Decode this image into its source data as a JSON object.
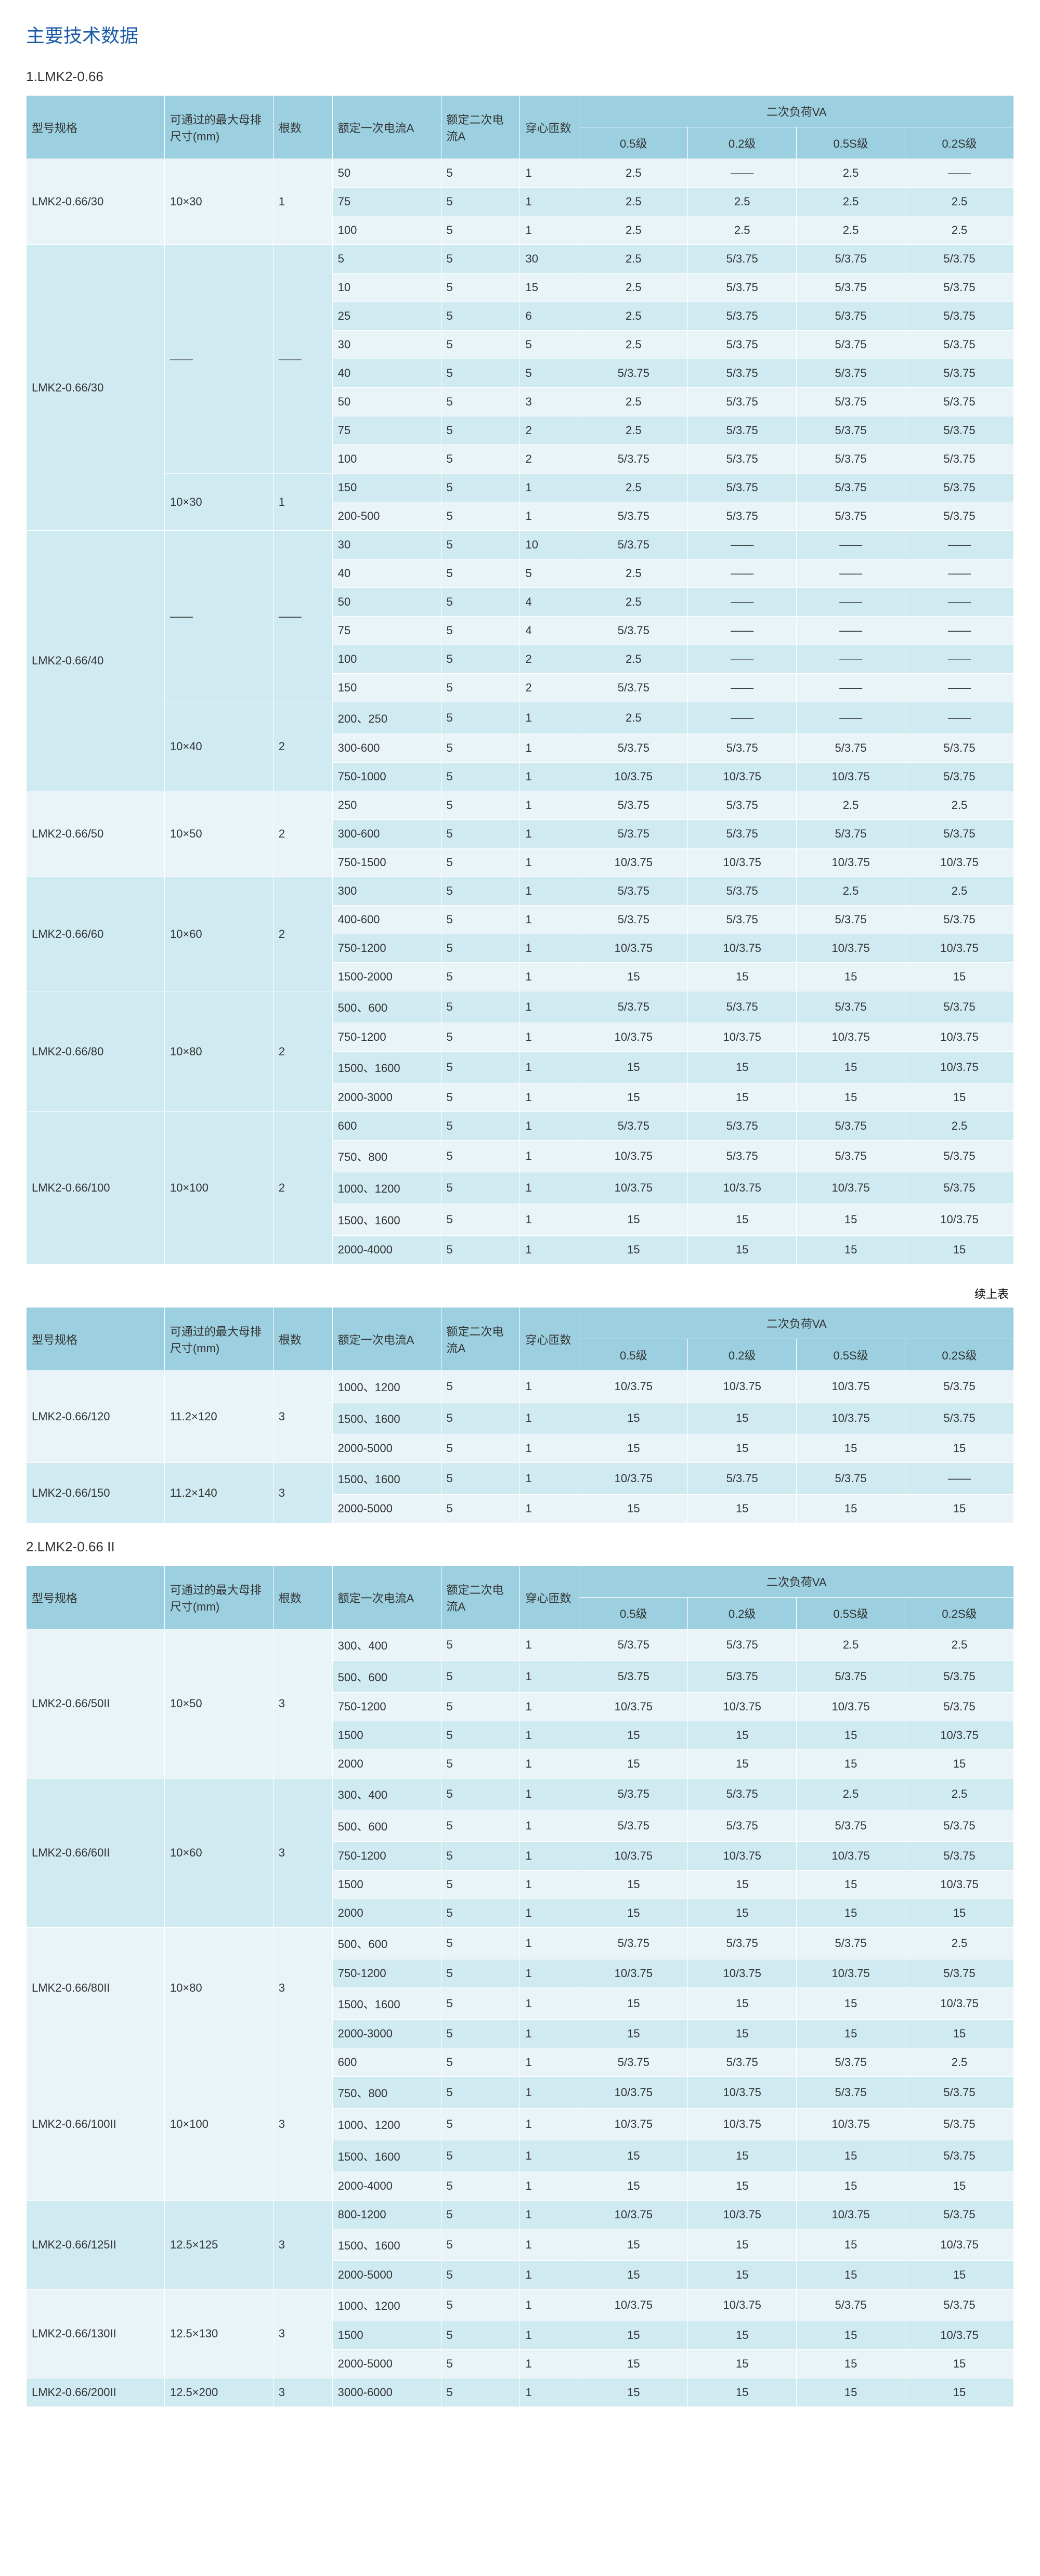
{
  "title": "主要技术数据",
  "section1_label": "1.LMK2-0.66",
  "section2_label": "2.LMK2-0.66 II",
  "continue_label": "续上表",
  "headers": {
    "model": "型号规格",
    "busbar": "可通过的最大母排尺寸(mm)",
    "roots": "根数",
    "primary": "额定一次电流A",
    "secondary": "额定二次电流A",
    "turns": "穿心匝数",
    "load": "二次负荷VA",
    "g05": "0.5级",
    "g02": "0.2级",
    "g05s": "0.5S级",
    "g02s": "0.2S级"
  },
  "groups1": [
    {
      "model": "LMK2-0.66/30",
      "bus": "10×30",
      "roots": "1",
      "rows": [
        [
          "50",
          "5",
          "1",
          "2.5",
          "——",
          "2.5",
          "——"
        ],
        [
          "75",
          "5",
          "1",
          "2.5",
          "2.5",
          "2.5",
          "2.5"
        ],
        [
          "100",
          "5",
          "1",
          "2.5",
          "2.5",
          "2.5",
          "2.5"
        ]
      ]
    },
    {
      "model": "LMK2-0.66/30",
      "bus_multi": true,
      "subs": [
        {
          "bus": "——",
          "roots": "——",
          "rows": [
            [
              "5",
              "5",
              "30",
              "2.5",
              "5/3.75",
              "5/3.75",
              "5/3.75"
            ],
            [
              "10",
              "5",
              "15",
              "2.5",
              "5/3.75",
              "5/3.75",
              "5/3.75"
            ],
            [
              "25",
              "5",
              "6",
              "2.5",
              "5/3.75",
              "5/3.75",
              "5/3.75"
            ],
            [
              "30",
              "5",
              "5",
              "2.5",
              "5/3.75",
              "5/3.75",
              "5/3.75"
            ],
            [
              "40",
              "5",
              "5",
              "5/3.75",
              "5/3.75",
              "5/3.75",
              "5/3.75"
            ],
            [
              "50",
              "5",
              "3",
              "2.5",
              "5/3.75",
              "5/3.75",
              "5/3.75"
            ],
            [
              "75",
              "5",
              "2",
              "2.5",
              "5/3.75",
              "5/3.75",
              "5/3.75"
            ],
            [
              "100",
              "5",
              "2",
              "5/3.75",
              "5/3.75",
              "5/3.75",
              "5/3.75"
            ]
          ]
        },
        {
          "bus": "10×30",
          "roots": "1",
          "rows": [
            [
              "150",
              "5",
              "1",
              "2.5",
              "5/3.75",
              "5/3.75",
              "5/3.75"
            ],
            [
              "200-500",
              "5",
              "1",
              "5/3.75",
              "5/3.75",
              "5/3.75",
              "5/3.75"
            ]
          ]
        }
      ]
    },
    {
      "model": "LMK2-0.66/40",
      "bus_multi": true,
      "subs": [
        {
          "bus": "——",
          "roots": "——",
          "rows": [
            [
              "30",
              "5",
              "10",
              "5/3.75",
              "——",
              "——",
              "——"
            ],
            [
              "40",
              "5",
              "5",
              "2.5",
              "——",
              "——",
              "——"
            ],
            [
              "50",
              "5",
              "4",
              "2.5",
              "——",
              "——",
              "——"
            ],
            [
              "75",
              "5",
              "4",
              "5/3.75",
              "——",
              "——",
              "——"
            ],
            [
              "100",
              "5",
              "2",
              "2.5",
              "——",
              "——",
              "——"
            ],
            [
              "150",
              "5",
              "2",
              "5/3.75",
              "——",
              "——",
              "——"
            ]
          ]
        },
        {
          "bus": "10×40",
          "roots": "2",
          "rows": [
            [
              "200、250",
              "5",
              "1",
              "2.5",
              "——",
              "——",
              "——"
            ],
            [
              "300-600",
              "5",
              "1",
              "5/3.75",
              "5/3.75",
              "5/3.75",
              "5/3.75"
            ],
            [
              "750-1000",
              "5",
              "1",
              "10/3.75",
              "10/3.75",
              "10/3.75",
              "5/3.75"
            ]
          ]
        }
      ]
    },
    {
      "model": "LMK2-0.66/50",
      "bus": "10×50",
      "roots": "2",
      "rows": [
        [
          "250",
          "5",
          "1",
          "5/3.75",
          "5/3.75",
          "2.5",
          "2.5"
        ],
        [
          "300-600",
          "5",
          "1",
          "5/3.75",
          "5/3.75",
          "5/3.75",
          "5/3.75"
        ],
        [
          "750-1500",
          "5",
          "1",
          "10/3.75",
          "10/3.75",
          "10/3.75",
          "10/3.75"
        ]
      ]
    },
    {
      "model": "LMK2-0.66/60",
      "bus": "10×60",
      "roots": "2",
      "rows": [
        [
          "300",
          "5",
          "1",
          "5/3.75",
          "5/3.75",
          "2.5",
          "2.5"
        ],
        [
          "400-600",
          "5",
          "1",
          "5/3.75",
          "5/3.75",
          "5/3.75",
          "5/3.75"
        ],
        [
          "750-1200",
          "5",
          "1",
          "10/3.75",
          "10/3.75",
          "10/3.75",
          "10/3.75"
        ],
        [
          "1500-2000",
          "5",
          "1",
          "15",
          "15",
          "15",
          "15"
        ]
      ]
    },
    {
      "model": "LMK2-0.66/80",
      "bus": "10×80",
      "roots": "2",
      "rows": [
        [
          "500、600",
          "5",
          "1",
          "5/3.75",
          "5/3.75",
          "5/3.75",
          "5/3.75"
        ],
        [
          "750-1200",
          "5",
          "1",
          "10/3.75",
          "10/3.75",
          "10/3.75",
          "10/3.75"
        ],
        [
          "1500、1600",
          "5",
          "1",
          "15",
          "15",
          "15",
          "10/3.75"
        ],
        [
          "2000-3000",
          "5",
          "1",
          "15",
          "15",
          "15",
          "15"
        ]
      ]
    },
    {
      "model": "LMK2-0.66/100",
      "bus": "10×100",
      "roots": "2",
      "rows": [
        [
          "600",
          "5",
          "1",
          "5/3.75",
          "5/3.75",
          "5/3.75",
          "2.5"
        ],
        [
          "750、800",
          "5",
          "1",
          "10/3.75",
          "5/3.75",
          "5/3.75",
          "5/3.75"
        ],
        [
          "1000、1200",
          "5",
          "1",
          "10/3.75",
          "10/3.75",
          "10/3.75",
          "5/3.75"
        ],
        [
          "1500、1600",
          "5",
          "1",
          "15",
          "15",
          "15",
          "10/3.75"
        ],
        [
          "2000-4000",
          "5",
          "1",
          "15",
          "15",
          "15",
          "15"
        ]
      ]
    }
  ],
  "groups1b": [
    {
      "model": "LMK2-0.66/120",
      "bus": "11.2×120",
      "roots": "3",
      "rows": [
        [
          "1000、1200",
          "5",
          "1",
          "10/3.75",
          "10/3.75",
          "10/3.75",
          "5/3.75"
        ],
        [
          "1500、1600",
          "5",
          "1",
          "15",
          "15",
          "10/3.75",
          "5/3.75"
        ],
        [
          "2000-5000",
          "5",
          "1",
          "15",
          "15",
          "15",
          "15"
        ]
      ]
    },
    {
      "model": "LMK2-0.66/150",
      "bus": "11.2×140",
      "roots": "3",
      "rows": [
        [
          "1500、1600",
          "5",
          "1",
          "10/3.75",
          "5/3.75",
          "5/3.75",
          "——"
        ],
        [
          "2000-5000",
          "5",
          "1",
          "15",
          "15",
          "15",
          "15"
        ]
      ]
    }
  ],
  "groups2": [
    {
      "model": "LMK2-0.66/50II",
      "bus": "10×50",
      "roots": "3",
      "rows": [
        [
          "300、400",
          "5",
          "1",
          "5/3.75",
          "5/3.75",
          "2.5",
          "2.5"
        ],
        [
          "500、600",
          "5",
          "1",
          "5/3.75",
          "5/3.75",
          "5/3.75",
          "5/3.75"
        ],
        [
          "750-1200",
          "5",
          "1",
          "10/3.75",
          "10/3.75",
          "10/3.75",
          "5/3.75"
        ],
        [
          "1500",
          "5",
          "1",
          "15",
          "15",
          "15",
          "10/3.75"
        ],
        [
          "2000",
          "5",
          "1",
          "15",
          "15",
          "15",
          "15"
        ]
      ]
    },
    {
      "model": "LMK2-0.66/60II",
      "bus": "10×60",
      "roots": "3",
      "rows": [
        [
          "300、400",
          "5",
          "1",
          "5/3.75",
          "5/3.75",
          "2.5",
          "2.5"
        ],
        [
          "500、600",
          "5",
          "1",
          "5/3.75",
          "5/3.75",
          "5/3.75",
          "5/3.75"
        ],
        [
          "750-1200",
          "5",
          "1",
          "10/3.75",
          "10/3.75",
          "10/3.75",
          "5/3.75"
        ],
        [
          "1500",
          "5",
          "1",
          "15",
          "15",
          "15",
          "10/3.75"
        ],
        [
          "2000",
          "5",
          "1",
          "15",
          "15",
          "15",
          "15"
        ]
      ]
    },
    {
      "model": "LMK2-0.66/80II",
      "bus": "10×80",
      "roots": "3",
      "rows": [
        [
          "500、600",
          "5",
          "1",
          "5/3.75",
          "5/3.75",
          "5/3.75",
          "2.5"
        ],
        [
          "750-1200",
          "5",
          "1",
          "10/3.75",
          "10/3.75",
          "10/3.75",
          "5/3.75"
        ],
        [
          "1500、1600",
          "5",
          "1",
          "15",
          "15",
          "15",
          "10/3.75"
        ],
        [
          "2000-3000",
          "5",
          "1",
          "15",
          "15",
          "15",
          "15"
        ]
      ]
    },
    {
      "model": "LMK2-0.66/100II",
      "bus": "10×100",
      "roots": "3",
      "rows": [
        [
          "600",
          "5",
          "1",
          "5/3.75",
          "5/3.75",
          "5/3.75",
          "2.5"
        ],
        [
          "750、800",
          "5",
          "1",
          "10/3.75",
          "10/3.75",
          "5/3.75",
          "5/3.75"
        ],
        [
          "1000、1200",
          "5",
          "1",
          "10/3.75",
          "10/3.75",
          "10/3.75",
          "5/3.75"
        ],
        [
          "1500、1600",
          "5",
          "1",
          "15",
          "15",
          "15",
          "5/3.75"
        ],
        [
          "2000-4000",
          "5",
          "1",
          "15",
          "15",
          "15",
          "15"
        ]
      ]
    },
    {
      "model": "LMK2-0.66/125II",
      "bus": "12.5×125",
      "roots": "3",
      "rows": [
        [
          "800-1200",
          "5",
          "1",
          "10/3.75",
          "10/3.75",
          "10/3.75",
          "5/3.75"
        ],
        [
          "1500、1600",
          "5",
          "1",
          "15",
          "15",
          "15",
          "10/3.75"
        ],
        [
          "2000-5000",
          "5",
          "1",
          "15",
          "15",
          "15",
          "15"
        ]
      ]
    },
    {
      "model": "LMK2-0.66/130II",
      "bus": "12.5×130",
      "roots": "3",
      "rows": [
        [
          "1000、1200",
          "5",
          "1",
          "10/3.75",
          "10/3.75",
          "5/3.75",
          "5/3.75"
        ],
        [
          "1500",
          "5",
          "1",
          "15",
          "15",
          "15",
          "10/3.75"
        ],
        [
          "2000-5000",
          "5",
          "1",
          "15",
          "15",
          "15",
          "15"
        ]
      ]
    },
    {
      "model": "LMK2-0.66/200II",
      "bus": "12.5×200",
      "roots": "3",
      "rows": [
        [
          "3000-6000",
          "5",
          "1",
          "15",
          "15",
          "15",
          "15"
        ]
      ]
    }
  ]
}
